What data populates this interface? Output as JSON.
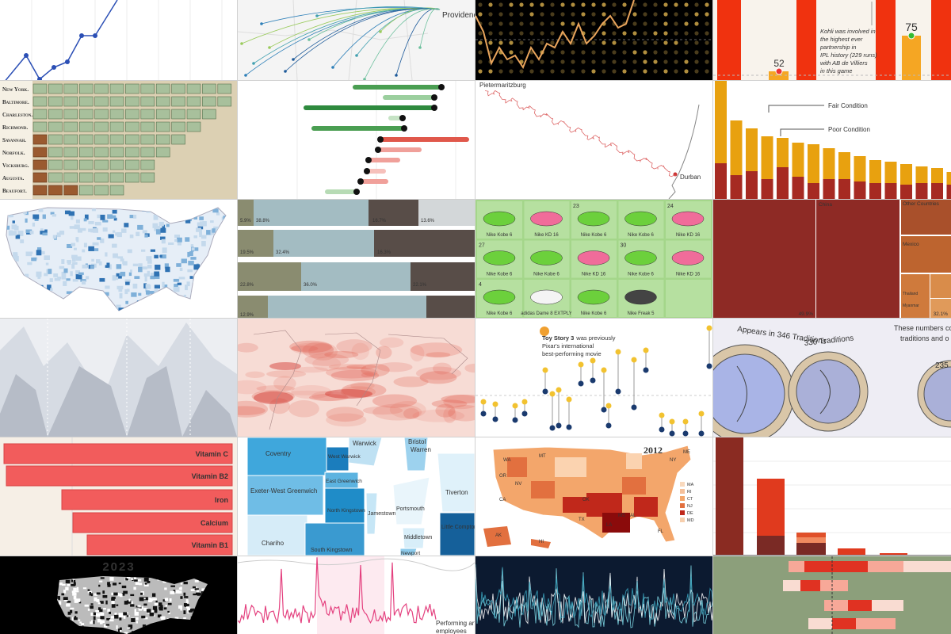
{
  "ipl_chart": {
    "annotation": [
      "Kohli was involved in",
      "the highest ever",
      "partnership in",
      "IPL history (229 runs)",
      "with AB de Villiers",
      "in this game"
    ],
    "labels": [
      "52",
      "75"
    ]
  },
  "flight_map": {
    "city": "Providence"
  },
  "currency_chart": {
    "cities": [
      "New York.",
      "Baltimore.",
      "Charleston.",
      "Richmond.",
      "Savannah.",
      "Norfolk.",
      "Vicksburg.",
      "Augusta.",
      "Beaufort."
    ]
  },
  "durban_route": {
    "start": "Pietermaritzburg",
    "end": "Durban"
  },
  "road_condition": {
    "labels": [
      "Fair Condition",
      "Poor Condition"
    ]
  },
  "share_bars": {
    "labels": [
      [
        "5.9%",
        "38.8%",
        "16.7%",
        "13.6%"
      ],
      [
        "19.5%",
        "32.4%",
        "16.3%"
      ],
      [
        "22.8%",
        "36.0%",
        "22.1%"
      ],
      [
        "12.9%"
      ]
    ]
  },
  "sneaker_grid": {
    "numbers": [
      "23",
      "24",
      "27",
      "30",
      "4"
    ],
    "shoes": [
      "Nike Kobe 6",
      "Nike KD 16",
      "Nike Kobe 6",
      "Nike Kobe 6",
      "Nike KD 16",
      "Nike Kobe 6",
      "Nike Kobe 6",
      "Nike KD 16",
      "Nike Kobe 6",
      "Nike KD 16",
      "Nike Kobe 6",
      "adidas Dame 8 EXTPLY",
      "Nike Kobe 6",
      "Nike Freak 5"
    ]
  },
  "import_treemap": {
    "labels": [
      "China",
      "Other Countries",
      "Mexico",
      "Thailand",
      "Myanmar"
    ],
    "shares": [
      "49.9%",
      "32.1%"
    ]
  },
  "pixar_chart": {
    "annotation": [
      "Toy Story 3",
      "was previously",
      "Pixar's international",
      "best-performing movie"
    ]
  },
  "moon_traditions": {
    "labels": [
      "Appears in 346 Traditions",
      "330 Traditions",
      "235",
      "These numbers com",
      "traditions and o"
    ]
  },
  "vitamin_bars": {
    "nutrients": [
      "Vitamin C",
      "Vitamin B2",
      "Iron",
      "Calcium",
      "Vitamin B1"
    ]
  },
  "rhode_island": {
    "towns": [
      "Warwick",
      "Bristol",
      "Warren",
      "Coventry",
      "West Warwick",
      "East Greenwich",
      "Exeter-West Greenwich",
      "North Kingstown",
      "Jamestown",
      "Portsmouth",
      "Tiverton",
      "Middletown",
      "Little Compton",
      "Chariho",
      "South Kingstown",
      "Newport"
    ]
  },
  "election_map": {
    "year": "2012",
    "states": [
      "WA",
      "OR",
      "CA",
      "NV",
      "MT",
      "TX",
      "OK",
      "LA",
      "MS",
      "AL",
      "FL",
      "NY",
      "ME",
      "AK",
      "HI"
    ],
    "legend": [
      "MA",
      "RI",
      "CT",
      "NJ",
      "DE",
      "MD"
    ]
  },
  "county_map": {
    "year": "2023"
  },
  "employment_chart": {
    "label": [
      "Performing arts",
      "employees"
    ]
  }
}
